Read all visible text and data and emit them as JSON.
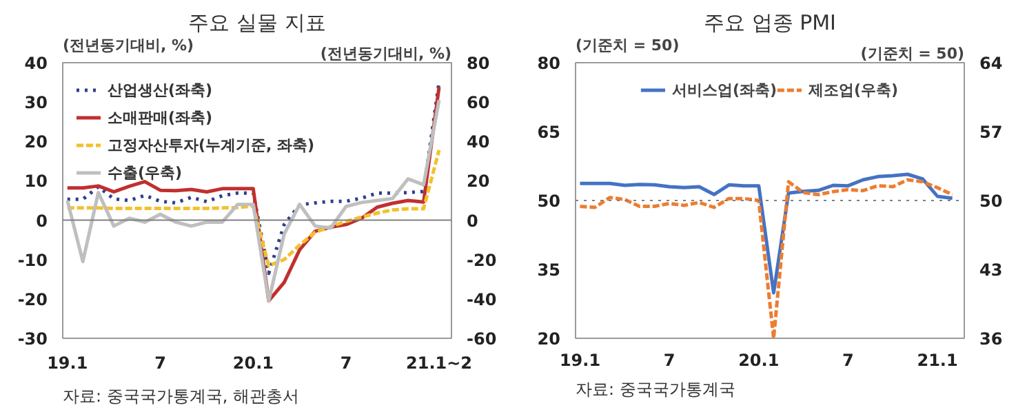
{
  "chart_data": [
    {
      "type": "line",
      "title": "주요 실물 지표",
      "ylabel": "(전년동기대비, %)",
      "y2label": "(전년동기대비, %)",
      "categories": [
        "19.1",
        null,
        null,
        null,
        null,
        null,
        "7",
        null,
        null,
        null,
        null,
        null,
        "20.1",
        null,
        null,
        null,
        null,
        null,
        "7",
        null,
        null,
        null,
        null,
        null,
        "21.1~2"
      ],
      "ylim": [
        -30,
        40
      ],
      "yticks": [
        -30,
        -20,
        -10,
        0,
        10,
        20,
        30,
        40
      ],
      "y2lim": [
        -60,
        80
      ],
      "y2ticks": [
        -60,
        -40,
        -20,
        0,
        20,
        40,
        60,
        80
      ],
      "series": [
        {
          "name": "산업생산(좌축)",
          "color": "#2e3f8f",
          "line_style": "dotted",
          "values": [
            5.3,
            5.3,
            8.5,
            5.4,
            5.0,
            6.3,
            4.8,
            4.4,
            5.8,
            4.7,
            6.2,
            6.9,
            6.9,
            -13.5,
            -1.1,
            3.9,
            4.4,
            4.8,
            4.8,
            5.6,
            6.9,
            6.9,
            7.0,
            7.3,
            35.1
          ]
        },
        {
          "name": "소매판매(좌축)",
          "color": "#c0302f",
          "line_style": "solid",
          "values": [
            8.2,
            8.2,
            8.7,
            7.2,
            8.6,
            9.8,
            7.6,
            7.5,
            7.8,
            7.2,
            8.0,
            8.0,
            8.0,
            -20.5,
            -15.8,
            -7.5,
            -2.8,
            -1.8,
            -1.1,
            0.5,
            3.3,
            4.3,
            5.0,
            4.6,
            33.8
          ]
        },
        {
          "name": "고정자산투자(누계기준, 좌축)",
          "color": "#f2c12e",
          "line_style": "dashed",
          "values": [
            3.1,
            3.1,
            3.1,
            3.0,
            3.0,
            3.0,
            3.0,
            3.0,
            3.0,
            3.0,
            3.1,
            3.2,
            3.6,
            -11.6,
            -10.0,
            -6.3,
            -3.1,
            -1.6,
            -0.3,
            0.8,
            1.8,
            2.6,
            2.9,
            2.9,
            17.8
          ]
        },
        {
          "name": "수출(우축)",
          "color": "#bfbfbf",
          "line_style": "solid",
          "axis": "y2",
          "values": [
            10,
            -21,
            14,
            -3,
            1,
            -1,
            3,
            -1,
            -3,
            -1,
            -1,
            8,
            8,
            -41,
            -7,
            8,
            -3,
            -4,
            7,
            9,
            10,
            11,
            21,
            18,
            61
          ]
        }
      ],
      "ref_lines": [
        {
          "axis": "y",
          "value": 0,
          "color": "#808080",
          "line_style": "solid"
        }
      ],
      "legend": "top left",
      "grid": false,
      "annotations": [
        "자료: 중국국가통계국, 해관총서"
      ]
    },
    {
      "type": "line",
      "title": "주요 업종 PMI",
      "ylabel": "(기준치 = 50)",
      "y2label": "(기준치 = 50)",
      "categories": [
        "19.1",
        null,
        null,
        null,
        null,
        null,
        "7",
        null,
        null,
        null,
        null,
        null,
        "20.1",
        null,
        null,
        null,
        null,
        null,
        "7",
        null,
        null,
        null,
        null,
        null,
        "21.1",
        null
      ],
      "ylim": [
        20,
        80
      ],
      "yticks": [
        20,
        35,
        50,
        65,
        80
      ],
      "y2lim": [
        36,
        64
      ],
      "y2ticks": [
        36,
        43,
        50,
        57,
        64
      ],
      "series": [
        {
          "name": "서비스업(좌축)",
          "color": "#4472c4",
          "line_style": "solid",
          "values": [
            53.7,
            53.7,
            53.7,
            53.3,
            53.5,
            53.4,
            53.0,
            52.8,
            53.0,
            51.3,
            53.4,
            53.2,
            53.2,
            29.9,
            51.6,
            52.0,
            52.2,
            53.3,
            53.2,
            54.5,
            55.2,
            55.4,
            55.7,
            54.7,
            50.9,
            50.5
          ]
        },
        {
          "name": "제조업(우축)",
          "color": "#ed7d31",
          "line_style": "dashed",
          "axis": "y2",
          "values": [
            49.4,
            49.3,
            50.3,
            50.1,
            49.4,
            49.4,
            49.7,
            49.5,
            49.8,
            49.3,
            50.2,
            50.2,
            50.0,
            36.0,
            51.9,
            50.8,
            50.6,
            50.9,
            51.1,
            51.0,
            51.5,
            51.4,
            52.1,
            51.9,
            51.3,
            50.6
          ]
        }
      ],
      "ref_lines": [
        {
          "axis": "y",
          "value": 50,
          "color": "#808080",
          "line_style": "dotted"
        }
      ],
      "legend": "top",
      "grid": false,
      "annotations": [
        "자료: 중국국가통계국"
      ]
    }
  ]
}
